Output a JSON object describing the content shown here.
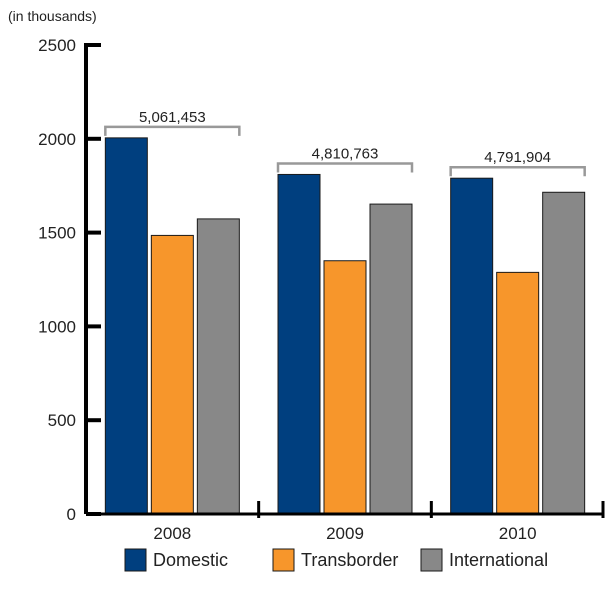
{
  "chart_data": {
    "type": "bar",
    "unit_note": "(in thousands)",
    "categories": [
      "2008",
      "2009",
      "2010"
    ],
    "series": [
      {
        "name": "Domestic",
        "color": "#003f7f",
        "values": [
          2005,
          1810,
          1790
        ]
      },
      {
        "name": "Transborder",
        "color": "#f7962b",
        "values": [
          1485,
          1350,
          1288
        ]
      },
      {
        "name": "International",
        "color": "#888888",
        "values": [
          1573,
          1652,
          1715
        ]
      }
    ],
    "totals": [
      "5,061,453",
      "4,810,763",
      "4,791,904"
    ],
    "yticks": [
      0,
      500,
      1000,
      1500,
      2000,
      2500
    ],
    "ylim": [
      0,
      2500
    ],
    "grid": false,
    "legend_position": "bottom",
    "bracket_color": "#999999",
    "axis_color": "#000000"
  }
}
